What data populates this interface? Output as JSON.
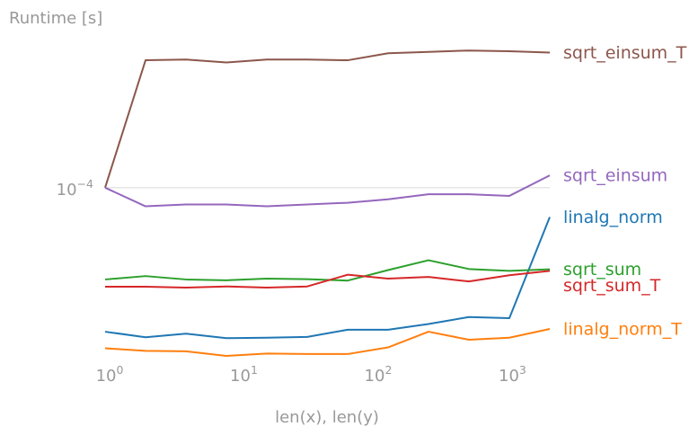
{
  "chart_data": {
    "type": "line",
    "title": "",
    "xlabel": "len(x), len(y)",
    "ylabel": "Runtime [s]",
    "x_scale": "log",
    "y_scale": "log",
    "xlim": [
      1,
      2048
    ],
    "ylim": [
      3.45e-05,
      0.000275
    ],
    "grid": {
      "y_major": true,
      "x": false
    },
    "legend": "none (labels at end of lines)",
    "x_ticks": [
      {
        "base": "10",
        "exp": "0",
        "value": 1
      },
      {
        "base": "10",
        "exp": "1",
        "value": 10
      },
      {
        "base": "10",
        "exp": "2",
        "value": 100
      },
      {
        "base": "10",
        "exp": "3",
        "value": 1000
      }
    ],
    "y_ticks": [
      {
        "base": "10",
        "exp": "−4",
        "value": 0.0001
      }
    ],
    "x": [
      1,
      2,
      4,
      8,
      16,
      32,
      64,
      128,
      256,
      512,
      1024,
      2048
    ],
    "series": [
      {
        "name": "sqrt_einsum_T",
        "color": "#8c564b",
        "values": [
          0.0001,
          0.000222,
          0.000223,
          0.000219,
          0.000223,
          0.000223,
          0.000222,
          0.000232,
          0.000234,
          0.000236,
          0.000235,
          0.000233
        ]
      },
      {
        "name": "sqrt_einsum",
        "color": "#9467bd",
        "values": [
          0.0001,
          8.9e-05,
          9e-05,
          9e-05,
          8.9e-05,
          9e-05,
          9.1e-05,
          9.3e-05,
          9.6e-05,
          9.6e-05,
          9.5e-05,
          0.000108
        ]
      },
      {
        "name": "linalg_norm",
        "color": "#1f77b4",
        "values": [
          4.06e-05,
          3.92e-05,
          4.01e-05,
          3.9e-05,
          3.91e-05,
          3.93e-05,
          4.11e-05,
          4.11e-05,
          4.26e-05,
          4.45e-05,
          4.42e-05,
          8.32e-05
        ]
      },
      {
        "name": "sqrt_sum",
        "color": "#2ca02c",
        "values": [
          5.63e-05,
          5.75e-05,
          5.63e-05,
          5.6e-05,
          5.66e-05,
          5.64e-05,
          5.59e-05,
          5.97e-05,
          6.35e-05,
          6.01e-05,
          5.94e-05,
          6e-05
        ]
      },
      {
        "name": "sqrt_sum_T",
        "color": "#d62728",
        "values": [
          5.38e-05,
          5.38e-05,
          5.35e-05,
          5.39e-05,
          5.35e-05,
          5.39e-05,
          5.8e-05,
          5.66e-05,
          5.72e-05,
          5.56e-05,
          5.78e-05,
          5.94e-05
        ]
      },
      {
        "name": "linalg_norm_T",
        "color": "#ff7f0e",
        "values": [
          3.66e-05,
          3.6e-05,
          3.59e-05,
          3.49e-05,
          3.54e-05,
          3.53e-05,
          3.53e-05,
          3.68e-05,
          4.06e-05,
          3.86e-05,
          3.91e-05,
          4.13e-05
        ]
      }
    ]
  }
}
